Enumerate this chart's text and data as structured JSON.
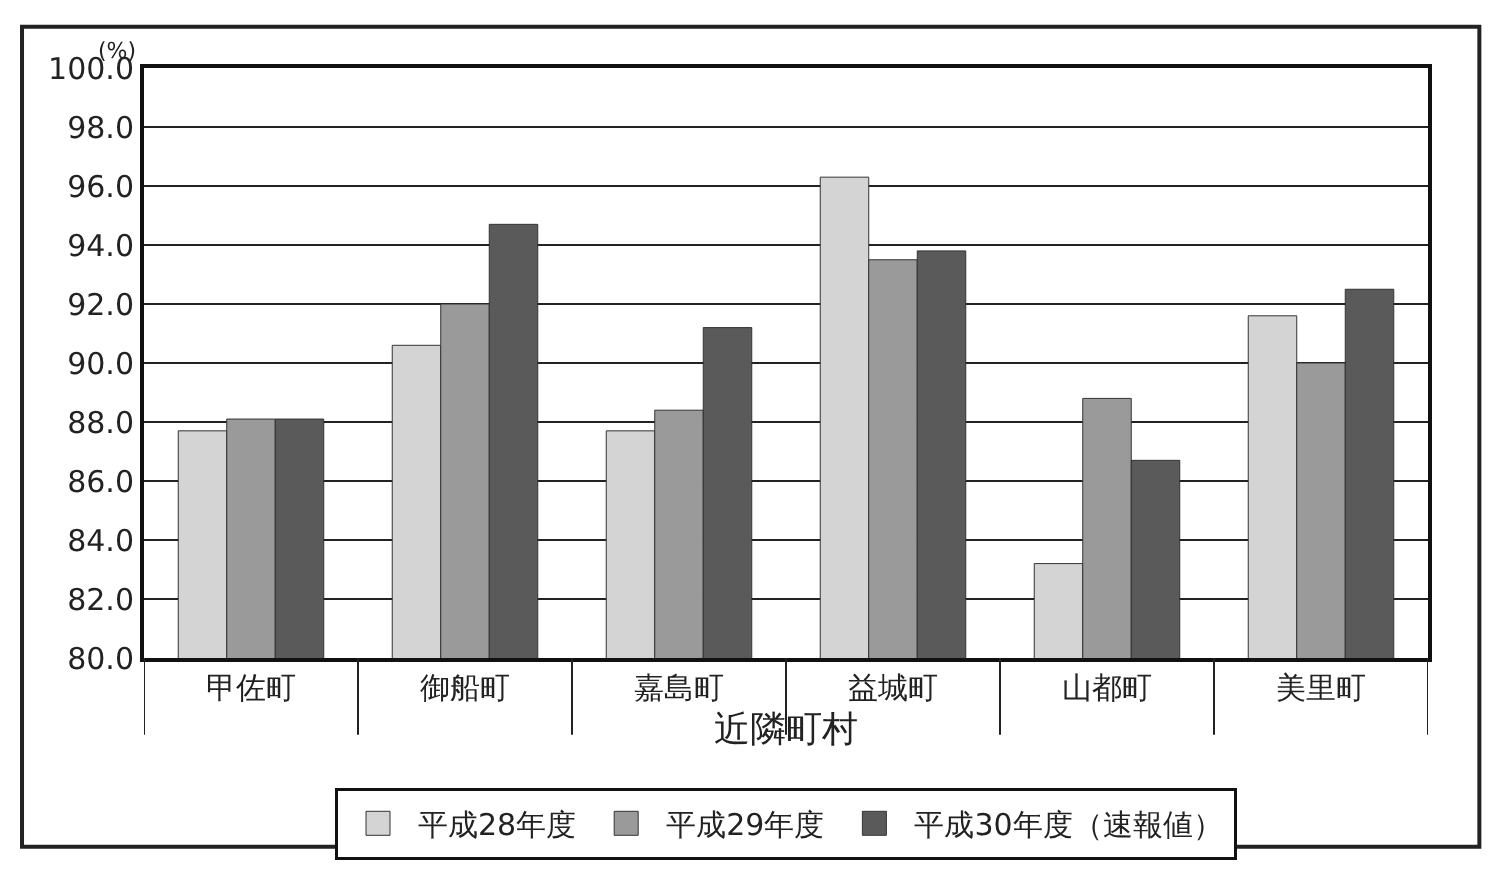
{
  "chart_data": {
    "type": "bar",
    "xlabel": "近隣町村",
    "ylabel": "(%)",
    "categories": [
      "甲佐町",
      "御船町",
      "嘉島町",
      "益城町",
      "山都町",
      "美里町"
    ],
    "series": [
      {
        "name": "平成28年度",
        "color": "#d4d4d4",
        "values": [
          87.7,
          90.6,
          87.7,
          96.3,
          83.2,
          91.6
        ]
      },
      {
        "name": "平成29年度",
        "color": "#9a9a9a",
        "values": [
          88.1,
          92.0,
          88.4,
          93.5,
          88.8,
          90.0
        ]
      },
      {
        "name": "平成30年度（速報値）",
        "color": "#5a5a5a",
        "values": [
          88.1,
          94.7,
          91.2,
          93.8,
          86.7,
          92.5
        ]
      }
    ],
    "ylim": [
      80,
      100
    ],
    "yticks": [
      {
        "value": 80,
        "label": "80.0"
      },
      {
        "value": 82,
        "label": "82.0"
      },
      {
        "value": 84,
        "label": "84.0"
      },
      {
        "value": 86,
        "label": "86.0"
      },
      {
        "value": 88,
        "label": "88.0"
      },
      {
        "value": 90,
        "label": "90.0"
      },
      {
        "value": 92,
        "label": "92.0"
      },
      {
        "value": 94,
        "label": "94.0"
      },
      {
        "value": 96,
        "label": "96.0"
      },
      {
        "value": 98,
        "label": "98.0"
      },
      {
        "value": 100,
        "label": "100.0"
      }
    ],
    "grid": "y",
    "legend": "bottom"
  }
}
